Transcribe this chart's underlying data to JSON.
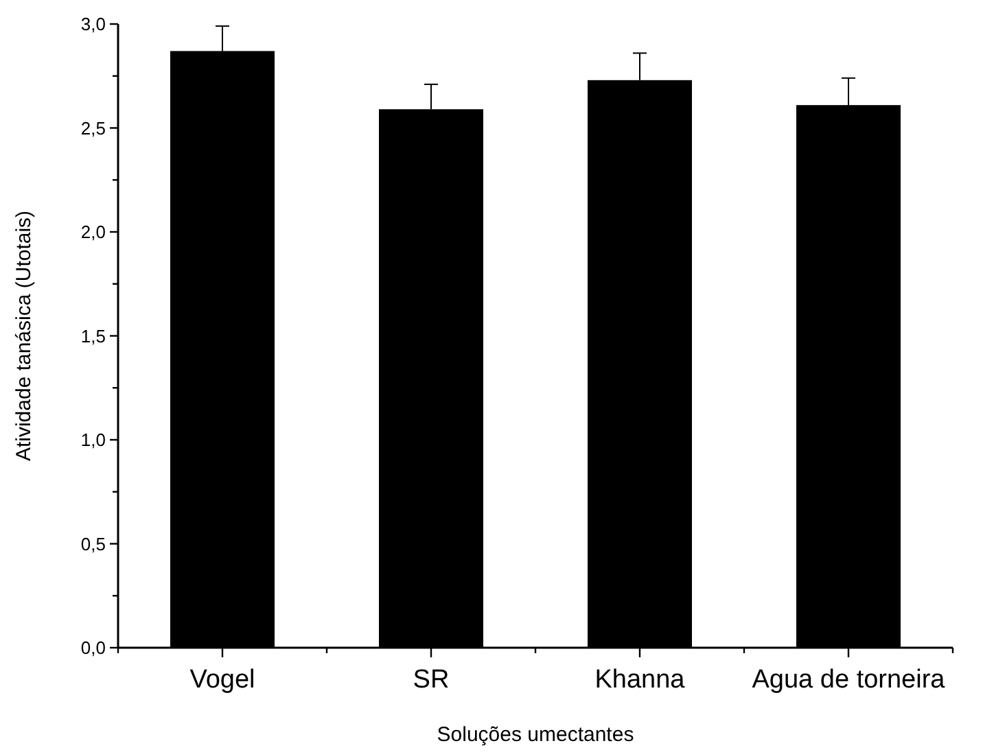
{
  "chart_data": {
    "type": "bar",
    "xlabel": "Soluções umectantes",
    "ylabel": "Atividade tanásica (Utotais)",
    "categories": [
      "Vogel",
      "SR",
      "Khanna",
      "Agua de torneira"
    ],
    "values": [
      2.87,
      2.59,
      2.73,
      2.61
    ],
    "color": "#000000",
    "errors": [
      [
        2.87,
        2.99
      ],
      [
        2.59,
        2.71
      ],
      [
        2.73,
        2.86
      ],
      [
        2.61,
        2.74
      ]
    ],
    "ylim": [
      0,
      3
    ],
    "yticks": [
      {
        "value": 0,
        "label": "0,0"
      },
      {
        "value": 0.25,
        "label": null
      },
      {
        "value": 0.5,
        "label": "0,5"
      },
      {
        "value": 0.75,
        "label": null
      },
      {
        "value": 1,
        "label": "1,0"
      },
      {
        "value": 1.25,
        "label": null
      },
      {
        "value": 1.5,
        "label": "1,5"
      },
      {
        "value": 1.75,
        "label": null
      },
      {
        "value": 2,
        "label": "2,0"
      },
      {
        "value": 2.25,
        "label": null
      },
      {
        "value": 2.5,
        "label": "2,5"
      },
      {
        "value": 2.75,
        "label": null
      },
      {
        "value": 3,
        "label": "3,0"
      }
    ],
    "grid": false
  }
}
